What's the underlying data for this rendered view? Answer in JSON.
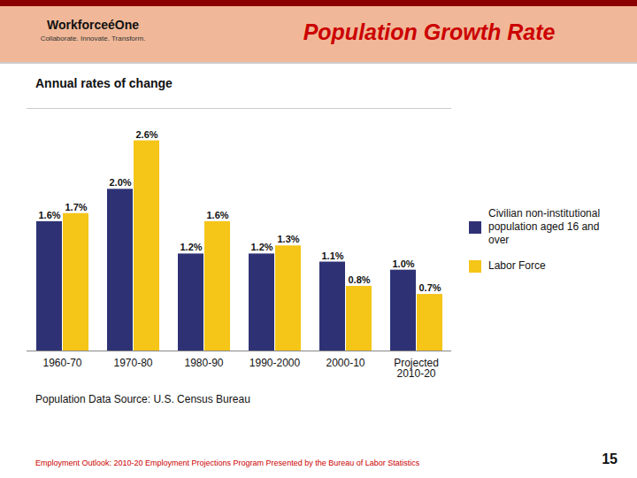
{
  "chart_data": {
    "type": "bar",
    "title": "Population Growth Rate",
    "subtitle": "Annual rates of change",
    "categories": [
      "1960-70",
      "1970-80",
      "1980-90",
      "1990-2000",
      "2000-10",
      "Projected\n2010-20"
    ],
    "series": [
      {
        "name": "Civilian non-institutional\npopulation aged 16 and\nover",
        "color": "#2E3275",
        "values": [
          1.6,
          2.0,
          1.2,
          1.2,
          1.1,
          1.0
        ],
        "value_labels": [
          "1.6%",
          "2.0%",
          "1.2%",
          "1.2%",
          "1.1%",
          "1.0%"
        ]
      },
      {
        "name": "Labor Force",
        "color": "#F5C518",
        "values": [
          1.7,
          2.6,
          1.6,
          1.3,
          0.8,
          0.7
        ],
        "value_labels": [
          "1.7%",
          "2.6%",
          "1.6%",
          "1.3%",
          "0.8%",
          "0.7%"
        ]
      }
    ],
    "ylim": [
      0,
      3.0
    ],
    "grid": false,
    "legend": "right",
    "data_labels": true,
    "tick_labels": "x",
    "annotations": [
      "WorkforceéOne",
      "Collaborate.  Innovate.  Transform.",
      "Population Data Source:  U.S. Census Bureau",
      "Employment Outlook: 2010-20 Employment Projections Program Presented by the Bureau of Labor Statistics",
      "15"
    ]
  }
}
